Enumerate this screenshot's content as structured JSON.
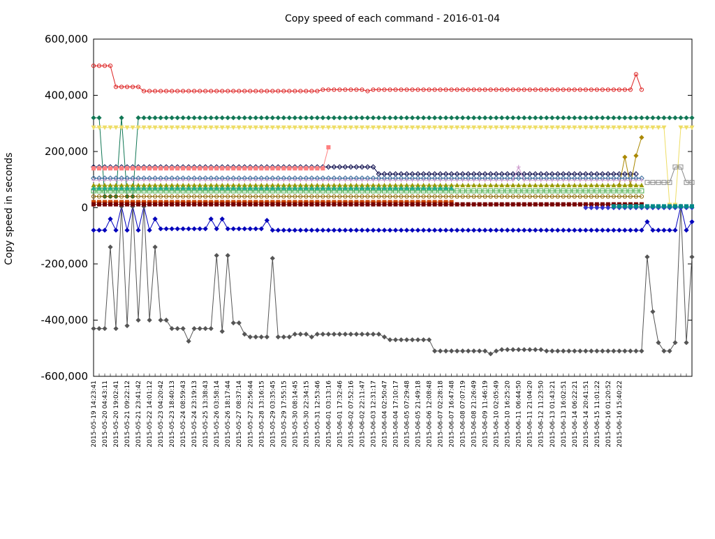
{
  "chart_data": {
    "type": "line",
    "title": "Copy speed of each command - 2016-01-04",
    "ylabel": "Copy speed in seconds",
    "xlabel": "",
    "ylim": [
      -600000,
      600000
    ],
    "yticks": [
      {
        "value": 600000,
        "label": "600,000"
      },
      {
        "value": 400000,
        "label": "400,000"
      },
      {
        "value": 200000,
        "label": "200,000"
      },
      {
        "value": 0,
        "label": "0"
      },
      {
        "value": -200000,
        "label": "-200,000"
      },
      {
        "value": -400000,
        "label": "-400,000"
      },
      {
        "value": -600000,
        "label": "-600,000"
      }
    ],
    "grid": false,
    "legend": "none",
    "x_first_label": "2015-05-19 14:23:41",
    "x_last_label": "2015-06-16 15:40:22",
    "x_count": 108,
    "series": [
      {
        "color": "#dd2222",
        "marker": "circle",
        "start": 0,
        "end": 98,
        "keys": [
          [
            0,
            505000
          ],
          [
            3,
            505000
          ],
          [
            4,
            430000
          ],
          [
            8,
            430000
          ],
          [
            9,
            415000
          ],
          [
            40,
            415000
          ],
          [
            41,
            420000
          ],
          [
            48,
            420000
          ],
          [
            49,
            415000
          ],
          [
            50,
            420000
          ],
          [
            96,
            420000
          ],
          [
            97,
            475000
          ],
          [
            98,
            420000
          ]
        ]
      },
      {
        "color": "#117755",
        "marker": "diamond",
        "start": 0,
        "end": 107,
        "keys": [
          [
            0,
            320000
          ],
          [
            1,
            320000
          ],
          [
            2,
            40000
          ],
          [
            4,
            40000
          ],
          [
            5,
            320000
          ],
          [
            6,
            40000
          ],
          [
            7,
            40000
          ],
          [
            8,
            320000
          ],
          [
            107,
            320000
          ]
        ]
      },
      {
        "color": "#eedd66",
        "marker": "triangle-down",
        "start": 0,
        "end": 107,
        "keys": [
          [
            0,
            285000
          ],
          [
            102,
            285000
          ],
          [
            103,
            10000
          ],
          [
            104,
            10000
          ],
          [
            105,
            285000
          ],
          [
            107,
            285000
          ]
        ]
      },
      {
        "color": "#000044",
        "marker": "diamond-open",
        "start": 0,
        "end": 97,
        "keys": [
          [
            0,
            145000
          ],
          [
            50,
            145000
          ],
          [
            51,
            120000
          ],
          [
            97,
            120000
          ]
        ]
      },
      {
        "color": "#ff8080",
        "marker": "square",
        "start": 0,
        "end": 42,
        "keys": [
          [
            0,
            140000
          ],
          [
            41,
            140000
          ],
          [
            42,
            215000
          ]
        ]
      },
      {
        "color": "#0000bb",
        "marker": "diamond",
        "start": 0,
        "end": 107,
        "keys": [
          [
            0,
            -80000
          ],
          [
            2,
            -80000
          ],
          [
            3,
            -40000
          ],
          [
            4,
            -80000
          ],
          [
            5,
            5000
          ],
          [
            6,
            -80000
          ],
          [
            7,
            5000
          ],
          [
            8,
            -80000
          ],
          [
            9,
            5000
          ],
          [
            10,
            -80000
          ],
          [
            11,
            -40000
          ],
          [
            12,
            -75000
          ],
          [
            20,
            -75000
          ],
          [
            21,
            -40000
          ],
          [
            22,
            -75000
          ],
          [
            23,
            -40000
          ],
          [
            24,
            -75000
          ],
          [
            30,
            -75000
          ],
          [
            31,
            -45000
          ],
          [
            32,
            -80000
          ],
          [
            98,
            -80000
          ],
          [
            99,
            -50000
          ],
          [
            100,
            -80000
          ],
          [
            104,
            -80000
          ],
          [
            105,
            5000
          ],
          [
            106,
            -80000
          ],
          [
            107,
            -50000
          ]
        ]
      },
      {
        "color": "#555555",
        "marker": "diamond",
        "start": 0,
        "end": 107,
        "keys": [
          [
            0,
            -430000
          ],
          [
            2,
            -430000
          ],
          [
            3,
            -140000
          ],
          [
            4,
            -430000
          ],
          [
            5,
            5000
          ],
          [
            6,
            -420000
          ],
          [
            7,
            5000
          ],
          [
            8,
            -400000
          ],
          [
            9,
            5000
          ],
          [
            10,
            -400000
          ],
          [
            11,
            -140000
          ],
          [
            12,
            -400000
          ],
          [
            14,
            -430000
          ],
          [
            16,
            -430000
          ],
          [
            17,
            -475000
          ],
          [
            18,
            -430000
          ],
          [
            21,
            -430000
          ],
          [
            22,
            -170000
          ],
          [
            23,
            -440000
          ],
          [
            24,
            -170000
          ],
          [
            25,
            -410000
          ],
          [
            27,
            -450000
          ],
          [
            28,
            -460000
          ],
          [
            31,
            -460000
          ],
          [
            32,
            -180000
          ],
          [
            33,
            -460000
          ],
          [
            36,
            -450000
          ],
          [
            38,
            -450000
          ],
          [
            39,
            -460000
          ],
          [
            40,
            -450000
          ],
          [
            52,
            -460000
          ],
          [
            53,
            -470000
          ],
          [
            60,
            -470000
          ],
          [
            61,
            -510000
          ],
          [
            70,
            -510000
          ],
          [
            71,
            -520000
          ],
          [
            72,
            -510000
          ],
          [
            73,
            -505000
          ],
          [
            80,
            -505000
          ],
          [
            81,
            -510000
          ],
          [
            97,
            -510000
          ],
          [
            98,
            -510000
          ],
          [
            99,
            -175000
          ],
          [
            100,
            -370000
          ],
          [
            101,
            -480000
          ],
          [
            102,
            -510000
          ],
          [
            103,
            -510000
          ],
          [
            104,
            -480000
          ],
          [
            105,
            5000
          ],
          [
            106,
            -480000
          ],
          [
            107,
            -175000
          ]
        ]
      },
      {
        "color": "#888888",
        "marker": "square-open",
        "start": 99,
        "end": 107,
        "keys": [
          [
            99,
            90000
          ],
          [
            103,
            90000
          ],
          [
            104,
            145000
          ],
          [
            105,
            145000
          ],
          [
            106,
            90000
          ],
          [
            107,
            90000
          ]
        ]
      },
      {
        "color": "#aa8800",
        "marker": "diamond",
        "start": 94,
        "end": 98,
        "keys": [
          [
            94,
            80000
          ],
          [
            95,
            180000
          ],
          [
            96,
            80000
          ],
          [
            97,
            185000
          ],
          [
            98,
            250000
          ]
        ]
      },
      {
        "color": "#336699",
        "marker": "diamond-open",
        "start": 0,
        "end": 98,
        "keys": [
          [
            0,
            105000
          ],
          [
            98,
            105000
          ]
        ]
      },
      {
        "color": "#cc99cc",
        "marker": "cross",
        "start": 0,
        "end": 98,
        "keys": [
          [
            0,
            98000
          ],
          [
            75,
            98000
          ],
          [
            76,
            145000
          ],
          [
            77,
            98000
          ],
          [
            98,
            98000
          ]
        ]
      },
      {
        "color": "#999900",
        "marker": "triangle",
        "start": 0,
        "end": 98,
        "keys": [
          [
            0,
            80000
          ],
          [
            98,
            80000
          ]
        ]
      },
      {
        "color": "#44aa44",
        "marker": "square-open",
        "start": 0,
        "end": 98,
        "keys": [
          [
            0,
            60000
          ],
          [
            98,
            60000
          ]
        ]
      },
      {
        "color": "#22aa88",
        "marker": "triangle",
        "start": 0,
        "end": 64,
        "keys": [
          [
            0,
            70000
          ],
          [
            64,
            70000
          ]
        ]
      },
      {
        "color": "#886600",
        "marker": "circle",
        "start": 0,
        "end": 98,
        "keys": [
          [
            0,
            40000
          ],
          [
            98,
            40000
          ]
        ]
      },
      {
        "color": "#cc4400",
        "marker": "square",
        "start": 0,
        "end": 64,
        "keys": [
          [
            0,
            20000
          ],
          [
            64,
            20000
          ]
        ]
      },
      {
        "color": "#770000",
        "marker": "square",
        "start": 0,
        "end": 98,
        "keys": [
          [
            0,
            12000
          ],
          [
            98,
            12000
          ]
        ]
      },
      {
        "color": "#3333cc",
        "marker": "diamond",
        "start": 88,
        "end": 107,
        "keys": [
          [
            88,
            0
          ],
          [
            107,
            0
          ]
        ]
      },
      {
        "color": "#008888",
        "marker": "square",
        "start": 93,
        "end": 107,
        "keys": [
          [
            93,
            5000
          ],
          [
            107,
            5000
          ]
        ]
      }
    ]
  }
}
